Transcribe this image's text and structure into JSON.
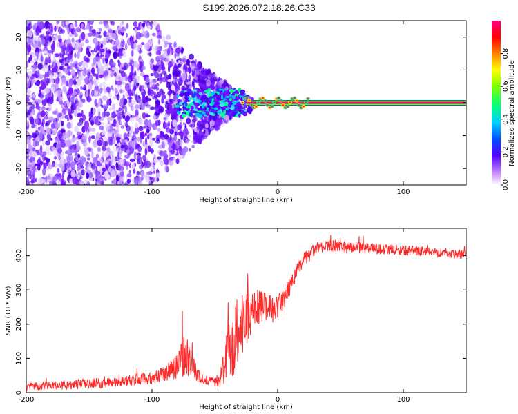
{
  "title": "S199.2026.072.18.26.C33",
  "chart_data": [
    {
      "type": "heatmap",
      "name": "spectrogram",
      "xlabel": "Height of straight line (km)",
      "ylabel": "Frequency (Hz)",
      "xlim": [
        -200,
        150
      ],
      "ylim": [
        -25,
        25
      ],
      "xticks": [
        "-200",
        "-100",
        "0",
        "100"
      ],
      "yticks": [
        "20",
        "10",
        "0",
        "-10",
        "-20"
      ],
      "colorbar": {
        "label": "Normalized spectral amplitude",
        "range": [
          0,
          1
        ],
        "ticks": [
          "0.0",
          "0.2",
          "0.4",
          "0.6",
          "0.8"
        ]
      },
      "features": {
        "scatter_extent_x": [
          -200,
          -40
        ],
        "dense_band_x": [
          -80,
          -25
        ],
        "tone_x": [
          -25,
          150
        ],
        "tone_freq": 0,
        "tone_amplitude": 1.0
      }
    },
    {
      "type": "line",
      "name": "snr",
      "xlabel": "Height of straight line (km)",
      "ylabel": "SNR (10 * v/v)",
      "xlim": [
        -200,
        150
      ],
      "ylim": [
        0,
        480
      ],
      "xticks": [
        "-200",
        "-100",
        "0",
        "100"
      ],
      "yticks": [
        "0",
        "100",
        "200",
        "300",
        "400"
      ],
      "series": [
        {
          "name": "SNR",
          "color": "#ff2a2a",
          "x": [
            -200,
            -180,
            -160,
            -140,
            -120,
            -100,
            -90,
            -80,
            -74,
            -70,
            -65,
            -60,
            -55,
            -50,
            -45,
            -40,
            -35,
            -30,
            -25,
            -20,
            -15,
            -10,
            -5,
            0,
            5,
            10,
            15,
            20,
            30,
            40,
            50,
            60,
            70,
            80,
            90,
            100,
            110,
            120,
            130,
            140,
            150
          ],
          "y": [
            18,
            20,
            24,
            28,
            34,
            42,
            55,
            75,
            120,
            95,
            60,
            40,
            35,
            30,
            45,
            110,
            160,
            190,
            210,
            230,
            250,
            255,
            240,
            250,
            275,
            310,
            350,
            385,
            418,
            430,
            428,
            425,
            422,
            420,
            418,
            416,
            414,
            412,
            410,
            405,
            402
          ],
          "noise": [
            12,
            12,
            14,
            15,
            16,
            18,
            22,
            35,
            70,
            50,
            25,
            15,
            12,
            15,
            30,
            80,
            110,
            110,
            80,
            65,
            55,
            45,
            40,
            35,
            30,
            28,
            25,
            22,
            20,
            18,
            18,
            16,
            16,
            15,
            15,
            15,
            14,
            14,
            14,
            14,
            14
          ]
        }
      ]
    }
  ]
}
